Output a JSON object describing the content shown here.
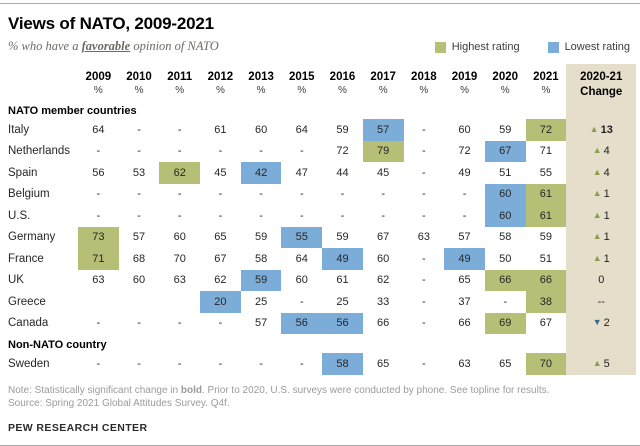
{
  "title": "Views of NATO, 2009-2021",
  "subtitle_prefix": "% who have a ",
  "subtitle_emphasis": "favorable",
  "subtitle_suffix": " opinion of NATO",
  "legend": [
    {
      "label": "Highest rating",
      "color": "#b7bf76"
    },
    {
      "label": "Lowest rating",
      "color": "#7cadd9"
    }
  ],
  "colors": {
    "highest": "#b7bf76",
    "lowest": "#7cadd9",
    "change_column_bg": "#e4decb",
    "up_triangle": "#8f9c4e",
    "down_triangle": "#31688a"
  },
  "unit_symbol": "%",
  "change_header_line1": "2020-21",
  "change_header_line2": "Change",
  "note_prefix": "Note: Statistically significant change in ",
  "note_bold": "bold",
  "note_suffix": ". Prior to 2020, U.S. surveys were conducted by phone. See topline for results.",
  "source": "Source: Spring 2021 Global Attitudes Survey. Q4f.",
  "brand": "PEW RESEARCH CENTER",
  "chart_data": {
    "type": "table",
    "title": "Views of NATO, 2009-2021",
    "subtitle": "% who have a favorable opinion of NATO",
    "categories": [
      "2009",
      "2010",
      "2011",
      "2012",
      "2013",
      "2015",
      "2016",
      "2017",
      "2018",
      "2019",
      "2020",
      "2021"
    ],
    "rows": [
      {
        "type": "section",
        "label": "NATO member countries"
      },
      {
        "type": "country",
        "label": "Italy",
        "values": [
          "64",
          "-",
          "-",
          "61",
          "60",
          "64",
          "59",
          "57",
          "-",
          "60",
          "59",
          "72"
        ],
        "highlight": [
          null,
          null,
          null,
          null,
          null,
          null,
          null,
          "low",
          null,
          null,
          null,
          "high"
        ],
        "change": {
          "dir": "up",
          "text": "13",
          "bold": true
        }
      },
      {
        "type": "country",
        "label": "Netherlands",
        "values": [
          "-",
          "-",
          "-",
          "-",
          "-",
          "-",
          "72",
          "79",
          "-",
          "72",
          "67",
          "71"
        ],
        "highlight": [
          null,
          null,
          null,
          null,
          null,
          null,
          null,
          "high",
          null,
          null,
          "low",
          null
        ],
        "change": {
          "dir": "up",
          "text": "4",
          "bold": false
        }
      },
      {
        "type": "country",
        "label": "Spain",
        "values": [
          "56",
          "53",
          "62",
          "45",
          "42",
          "47",
          "44",
          "45",
          "-",
          "49",
          "51",
          "55"
        ],
        "highlight": [
          null,
          null,
          "high",
          null,
          "low",
          null,
          null,
          null,
          null,
          null,
          null,
          null
        ],
        "change": {
          "dir": "up",
          "text": "4",
          "bold": false
        }
      },
      {
        "type": "country",
        "label": "Belgium",
        "values": [
          "-",
          "-",
          "-",
          "-",
          "-",
          "-",
          "-",
          "-",
          "-",
          "-",
          "60",
          "61"
        ],
        "highlight": [
          null,
          null,
          null,
          null,
          null,
          null,
          null,
          null,
          null,
          null,
          "low",
          "high"
        ],
        "change": {
          "dir": "up",
          "text": "1",
          "bold": false
        }
      },
      {
        "type": "country",
        "label": "U.S.",
        "values": [
          "-",
          "-",
          "-",
          "-",
          "-",
          "-",
          "-",
          "-",
          "-",
          "-",
          "60",
          "61"
        ],
        "highlight": [
          null,
          null,
          null,
          null,
          null,
          null,
          null,
          null,
          null,
          null,
          "low",
          "high"
        ],
        "change": {
          "dir": "up",
          "text": "1",
          "bold": false
        }
      },
      {
        "type": "country",
        "label": "Germany",
        "values": [
          "73",
          "57",
          "60",
          "65",
          "59",
          "55",
          "59",
          "67",
          "63",
          "57",
          "58",
          "59"
        ],
        "highlight": [
          "high",
          null,
          null,
          null,
          null,
          "low",
          null,
          null,
          null,
          null,
          null,
          null
        ],
        "change": {
          "dir": "up",
          "text": "1",
          "bold": false
        }
      },
      {
        "type": "country",
        "label": "France",
        "values": [
          "71",
          "68",
          "70",
          "67",
          "58",
          "64",
          "49",
          "60",
          "-",
          "49",
          "50",
          "51"
        ],
        "highlight": [
          "high",
          null,
          null,
          null,
          null,
          null,
          "low",
          null,
          null,
          "low",
          null,
          null
        ],
        "change": {
          "dir": "up",
          "text": "1",
          "bold": false
        }
      },
      {
        "type": "country",
        "label": "UK",
        "values": [
          "63",
          "60",
          "63",
          "62",
          "59",
          "60",
          "61",
          "62",
          "-",
          "65",
          "66",
          "66"
        ],
        "highlight": [
          null,
          null,
          null,
          null,
          "low",
          null,
          null,
          null,
          null,
          null,
          "high",
          "high"
        ],
        "change": {
          "dir": null,
          "text": "0",
          "bold": false
        }
      },
      {
        "type": "country",
        "label": "Greece",
        "values": [
          "",
          "",
          "",
          "20",
          "25",
          "-",
          "25",
          "33",
          "-",
          "37",
          "-",
          "38"
        ],
        "highlight": [
          null,
          null,
          null,
          "low",
          null,
          null,
          null,
          null,
          null,
          null,
          null,
          "high"
        ],
        "change": {
          "dir": null,
          "text": "--",
          "bold": false
        }
      },
      {
        "type": "country",
        "label": "Canada",
        "values": [
          "-",
          "-",
          "-",
          "-",
          "57",
          "56",
          "56",
          "66",
          "-",
          "66",
          "69",
          "67"
        ],
        "highlight": [
          null,
          null,
          null,
          null,
          null,
          "low",
          "low",
          null,
          null,
          null,
          "high",
          null
        ],
        "change": {
          "dir": "down",
          "text": "2",
          "bold": false
        }
      },
      {
        "type": "section",
        "label": "Non-NATO country"
      },
      {
        "type": "country",
        "label": "Sweden",
        "values": [
          "-",
          "-",
          "-",
          "-",
          "-",
          "-",
          "58",
          "65",
          "-",
          "63",
          "65",
          "70"
        ],
        "highlight": [
          null,
          null,
          null,
          null,
          null,
          null,
          "low",
          null,
          null,
          null,
          null,
          "high"
        ],
        "change": {
          "dir": "up",
          "text": "5",
          "bold": false
        }
      }
    ],
    "legend": [
      "Highest rating",
      "Lowest rating"
    ],
    "notes": "Statistically significant change in bold. Prior to 2020, U.S. surveys were conducted by phone. See topline for results.",
    "source": "Spring 2021 Global Attitudes Survey. Q4f."
  }
}
